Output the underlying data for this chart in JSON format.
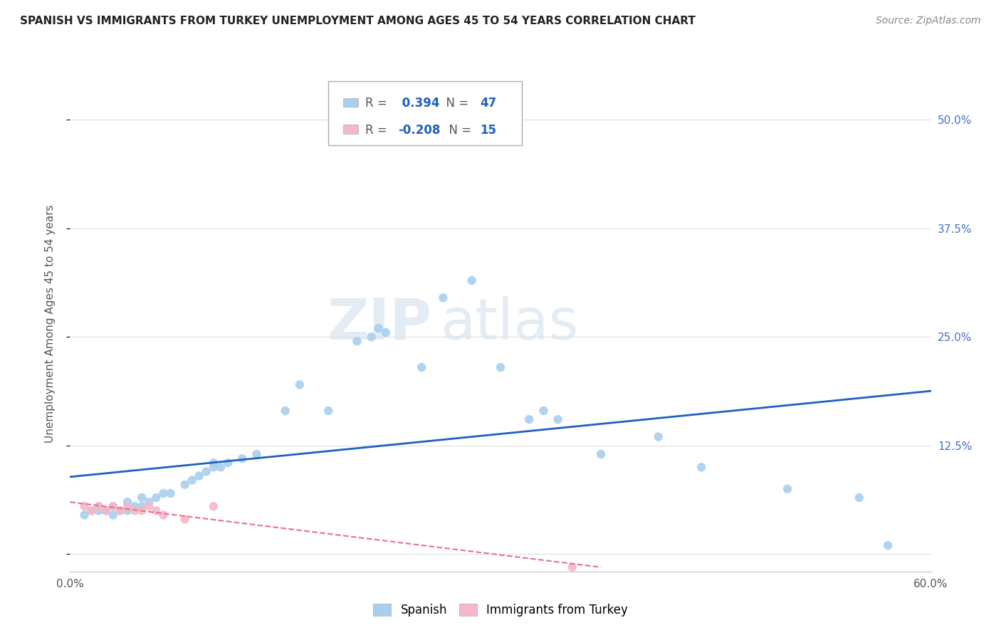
{
  "title": "SPANISH VS IMMIGRANTS FROM TURKEY UNEMPLOYMENT AMONG AGES 45 TO 54 YEARS CORRELATION CHART",
  "source": "Source: ZipAtlas.com",
  "ylabel": "Unemployment Among Ages 45 to 54 years",
  "xlim": [
    0.0,
    0.6
  ],
  "ylim": [
    -0.02,
    0.55
  ],
  "ytick_positions": [
    0.0,
    0.125,
    0.25,
    0.375,
    0.5
  ],
  "ytick_labels": [
    "",
    "12.5%",
    "25.0%",
    "37.5%",
    "50.0%"
  ],
  "spanish_R": 0.394,
  "spanish_N": 47,
  "turkey_R": -0.208,
  "turkey_N": 15,
  "spanish_color": "#A8CFEE",
  "turkey_color": "#F5B8C8",
  "regression_spanish_color": "#2060C0",
  "regression_turkey_color": "#E8708A",
  "watermark_zip": "ZIP",
  "watermark_atlas": "atlas",
  "spanish_points": [
    [
      0.01,
      0.045
    ],
    [
      0.015,
      0.05
    ],
    [
      0.02,
      0.05
    ],
    [
      0.02,
      0.055
    ],
    [
      0.025,
      0.05
    ],
    [
      0.03,
      0.045
    ],
    [
      0.03,
      0.055
    ],
    [
      0.035,
      0.05
    ],
    [
      0.04,
      0.05
    ],
    [
      0.04,
      0.06
    ],
    [
      0.045,
      0.055
    ],
    [
      0.05,
      0.055
    ],
    [
      0.05,
      0.065
    ],
    [
      0.055,
      0.06
    ],
    [
      0.06,
      0.065
    ],
    [
      0.065,
      0.07
    ],
    [
      0.07,
      0.07
    ],
    [
      0.08,
      0.08
    ],
    [
      0.085,
      0.085
    ],
    [
      0.09,
      0.09
    ],
    [
      0.095,
      0.095
    ],
    [
      0.1,
      0.1
    ],
    [
      0.1,
      0.105
    ],
    [
      0.105,
      0.1
    ],
    [
      0.11,
      0.105
    ],
    [
      0.12,
      0.11
    ],
    [
      0.13,
      0.115
    ],
    [
      0.15,
      0.165
    ],
    [
      0.16,
      0.195
    ],
    [
      0.18,
      0.165
    ],
    [
      0.2,
      0.245
    ],
    [
      0.21,
      0.25
    ],
    [
      0.215,
      0.26
    ],
    [
      0.22,
      0.255
    ],
    [
      0.245,
      0.215
    ],
    [
      0.26,
      0.295
    ],
    [
      0.28,
      0.315
    ],
    [
      0.3,
      0.215
    ],
    [
      0.32,
      0.155
    ],
    [
      0.33,
      0.165
    ],
    [
      0.34,
      0.155
    ],
    [
      0.37,
      0.115
    ],
    [
      0.41,
      0.135
    ],
    [
      0.44,
      0.1
    ],
    [
      0.5,
      0.075
    ],
    [
      0.55,
      0.065
    ],
    [
      0.57,
      0.01
    ]
  ],
  "turkey_points": [
    [
      0.01,
      0.055
    ],
    [
      0.015,
      0.05
    ],
    [
      0.02,
      0.055
    ],
    [
      0.025,
      0.05
    ],
    [
      0.03,
      0.055
    ],
    [
      0.035,
      0.05
    ],
    [
      0.04,
      0.055
    ],
    [
      0.045,
      0.05
    ],
    [
      0.05,
      0.05
    ],
    [
      0.055,
      0.055
    ],
    [
      0.06,
      0.05
    ],
    [
      0.065,
      0.045
    ],
    [
      0.08,
      0.04
    ],
    [
      0.1,
      0.055
    ],
    [
      0.35,
      -0.015
    ]
  ],
  "bottom_legend_labels": [
    "Spanish",
    "Immigrants from Turkey"
  ]
}
